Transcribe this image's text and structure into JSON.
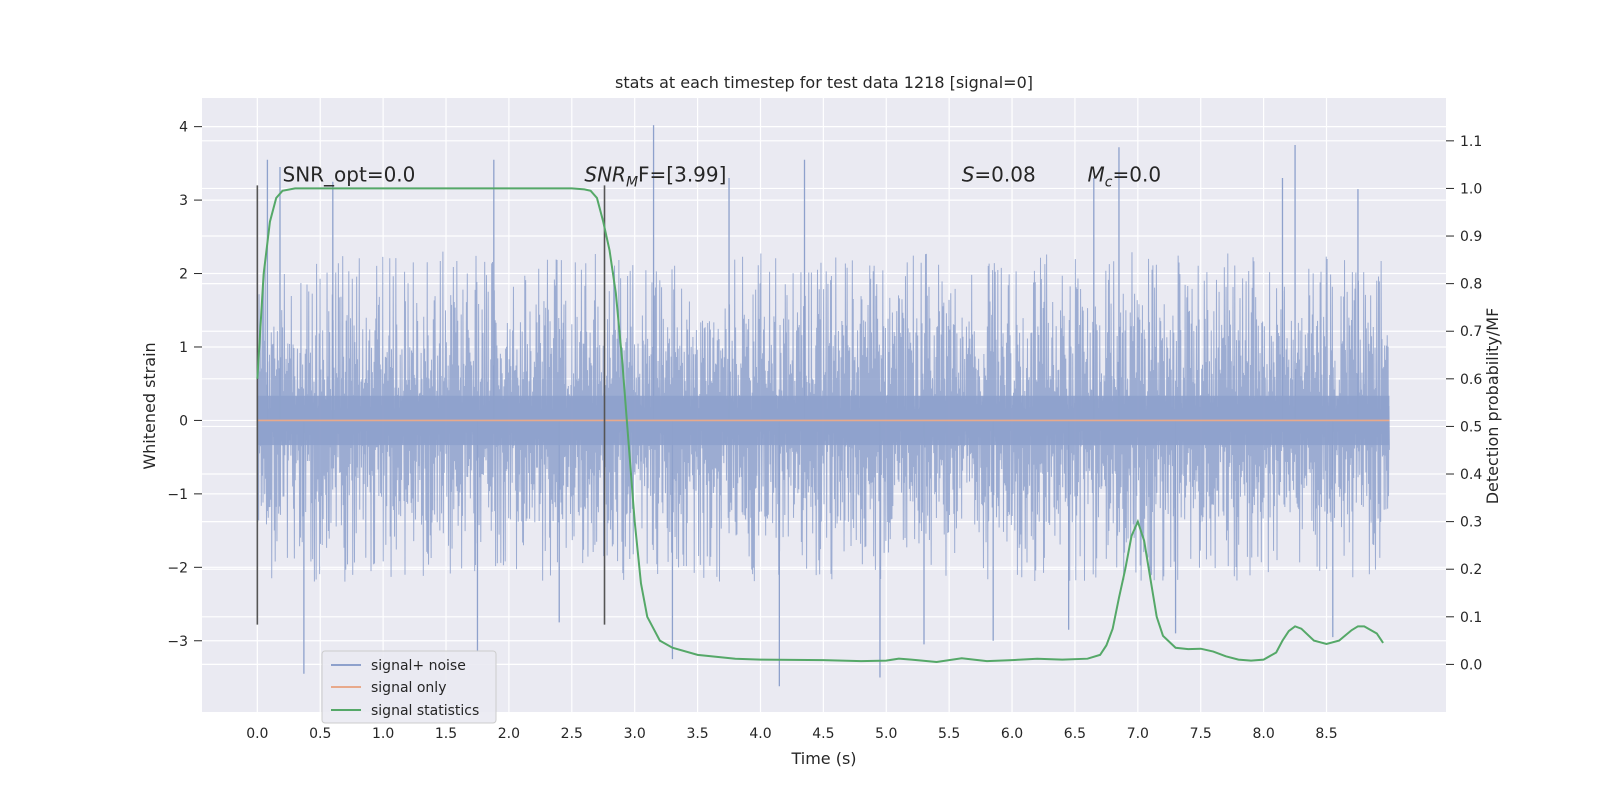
{
  "chart_data": {
    "type": "line",
    "title": "stats at each timestep for test data 1218 [signal=0]",
    "xlabel": "Time (s)",
    "ylabel_left": "Whitened strain",
    "ylabel_right": "Detection probability/MF",
    "xlim": [
      -0.44,
      9.45
    ],
    "ylim_left": [
      -3.97,
      4.39
    ],
    "ylim_right": [
      -0.1,
      1.19
    ],
    "xticks": [
      0.0,
      0.5,
      1.0,
      1.5,
      2.0,
      2.5,
      3.0,
      3.5,
      4.0,
      4.5,
      5.0,
      5.5,
      6.0,
      6.5,
      7.0,
      7.5,
      8.0,
      8.5
    ],
    "xtick_labels": [
      "0.0",
      "0.5",
      "1.0",
      "1.5",
      "2.0",
      "2.5",
      "3.0",
      "3.5",
      "4.0",
      "4.5",
      "5.0",
      "5.5",
      "6.0",
      "6.5",
      "7.0",
      "7.5",
      "8.0",
      "8.5"
    ],
    "yticks_left": [
      -3,
      -2,
      -1,
      0,
      1,
      2,
      3,
      4
    ],
    "ytick_labels_left": [
      "−3",
      "−2",
      "−1",
      "0",
      "1",
      "2",
      "3",
      "4"
    ],
    "yticks_right": [
      0.0,
      0.1,
      0.2,
      0.3,
      0.4,
      0.5,
      0.6,
      0.7,
      0.8,
      0.9,
      1.0,
      1.1
    ],
    "ytick_labels_right": [
      "0.0",
      "0.1",
      "0.2",
      "0.3",
      "0.4",
      "0.5",
      "0.6",
      "0.7",
      "0.8",
      "0.9",
      "1.0",
      "1.1"
    ],
    "grid": true,
    "legend_position": "lower-left",
    "legend": [
      {
        "label": "signal+ noise",
        "color": "#8ea1cc"
      },
      {
        "label": "signal only",
        "color": "#e8a98b"
      },
      {
        "label": "signal statistics",
        "color": "#55a868"
      }
    ],
    "annotations": {
      "snr_opt": {
        "text": "SNR_opt=0.0",
        "x": 0.2,
        "y": 3.2
      },
      "snr_mf": {
        "main": "SNR",
        "sub": "M",
        "tail": "F=[3.99]",
        "x": 2.6,
        "y": 3.2
      },
      "spin": {
        "var": "S",
        "tail": "=0.08",
        "x": 5.6,
        "y": 3.2
      },
      "chirp_mass": {
        "var": "M",
        "sub": "c",
        "tail": "=0.0",
        "x": 6.6,
        "y": 3.2
      }
    },
    "vertical_markers": [
      {
        "x": 0.0,
        "y_range": [
          -2.78,
          3.2
        ]
      },
      {
        "x": 2.76,
        "y_range": [
          -2.78,
          3.2
        ]
      }
    ],
    "series": [
      {
        "name": "signal+ noise",
        "axis": "left",
        "color": "#8ea1cc",
        "x_range": [
          0.0,
          9.0
        ],
        "core_band": [
          -1.4,
          1.4
        ],
        "typical_band": [
          -2.2,
          2.3
        ],
        "spikes": [
          [
            0.08,
            3.55
          ],
          [
            0.18,
            3.45
          ],
          [
            0.6,
            3.25
          ],
          [
            1.88,
            3.55
          ],
          [
            3.15,
            4.02
          ],
          [
            3.75,
            3.3
          ],
          [
            4.35,
            3.55
          ],
          [
            6.65,
            3.3
          ],
          [
            6.85,
            3.72
          ],
          [
            8.15,
            3.3
          ],
          [
            8.25,
            3.75
          ],
          [
            8.75,
            3.15
          ],
          [
            0.37,
            -3.45
          ],
          [
            1.75,
            -3.15
          ],
          [
            3.3,
            -3.25
          ],
          [
            4.15,
            -3.62
          ],
          [
            4.95,
            -3.5
          ],
          [
            5.85,
            -3.0
          ],
          [
            7.3,
            -2.9
          ],
          [
            8.55,
            -2.95
          ],
          [
            2.4,
            -2.75
          ],
          [
            5.3,
            -3.05
          ],
          [
            6.45,
            -2.85
          ]
        ]
      },
      {
        "name": "signal only",
        "axis": "left",
        "color": "#e8a98b",
        "x": [
          0.0,
          9.0
        ],
        "y": [
          0.0,
          0.0
        ]
      },
      {
        "name": "signal statistics",
        "axis": "right",
        "color": "#55a868",
        "x": [
          0.0,
          0.05,
          0.1,
          0.15,
          0.2,
          0.3,
          0.5,
          1.0,
          1.5,
          2.0,
          2.5,
          2.6,
          2.65,
          2.7,
          2.75,
          2.8,
          2.85,
          2.9,
          2.95,
          3.0,
          3.05,
          3.1,
          3.2,
          3.3,
          3.5,
          3.8,
          4.0,
          4.5,
          4.8,
          5.0,
          5.1,
          5.2,
          5.4,
          5.6,
          5.8,
          6.0,
          6.2,
          6.4,
          6.6,
          6.7,
          6.75,
          6.8,
          6.85,
          6.9,
          6.95,
          7.0,
          7.05,
          7.1,
          7.15,
          7.2,
          7.3,
          7.4,
          7.5,
          7.6,
          7.7,
          7.8,
          7.9,
          8.0,
          8.1,
          8.15,
          8.2,
          8.25,
          8.3,
          8.4,
          8.5,
          8.6,
          8.7,
          8.75,
          8.8,
          8.9,
          8.95
        ],
        "y": [
          0.6,
          0.82,
          0.93,
          0.98,
          0.995,
          1.0,
          1.0,
          1.0,
          1.0,
          1.0,
          1.0,
          0.998,
          0.995,
          0.98,
          0.93,
          0.87,
          0.78,
          0.64,
          0.47,
          0.3,
          0.17,
          0.1,
          0.05,
          0.035,
          0.02,
          0.012,
          0.01,
          0.009,
          0.007,
          0.008,
          0.012,
          0.01,
          0.005,
          0.013,
          0.007,
          0.009,
          0.012,
          0.01,
          0.012,
          0.02,
          0.04,
          0.075,
          0.14,
          0.2,
          0.27,
          0.3,
          0.26,
          0.18,
          0.1,
          0.06,
          0.035,
          0.032,
          0.033,
          0.027,
          0.017,
          0.01,
          0.008,
          0.01,
          0.025,
          0.05,
          0.07,
          0.08,
          0.075,
          0.05,
          0.043,
          0.05,
          0.072,
          0.08,
          0.08,
          0.065,
          0.045
        ]
      }
    ]
  }
}
